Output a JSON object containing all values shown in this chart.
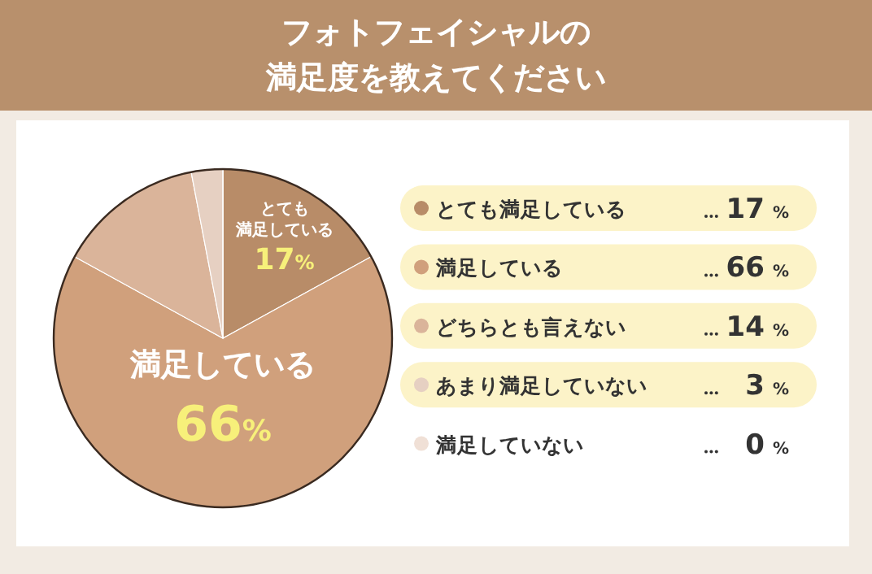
{
  "chart_data": {
    "type": "pie",
    "title": "フォトフェイシャルの満足度を教えてください",
    "categories": [
      "とても満足している",
      "満足している",
      "どちらとも言えない",
      "あまり満足していない",
      "満足していない"
    ],
    "values": [
      17,
      66,
      14,
      3,
      0
    ],
    "legend": "right",
    "value_labels": [
      "17%",
      "66%",
      "14%",
      "3%",
      "0%"
    ],
    "colors": [
      "#b88c68",
      "#d0a07c",
      "#dab49a",
      "#e6d0c2",
      "#f0e0d6"
    ]
  }
}
